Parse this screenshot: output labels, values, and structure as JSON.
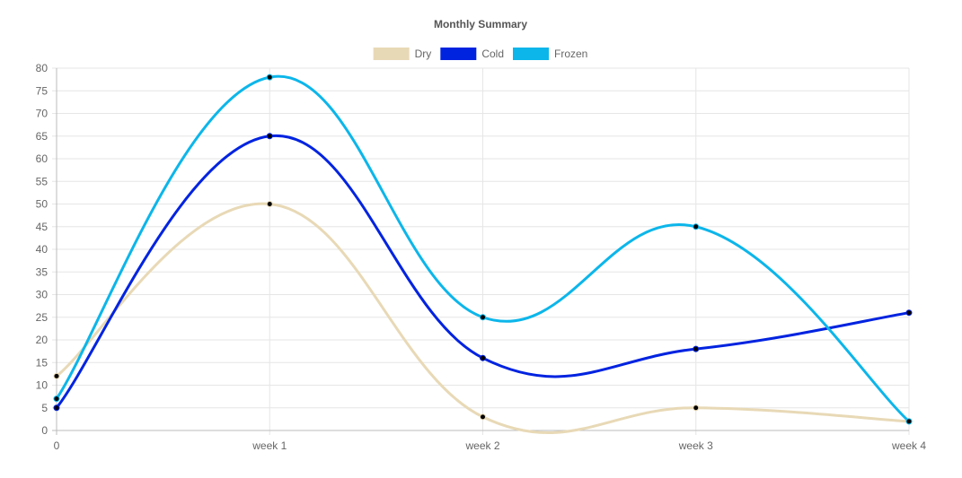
{
  "chart_data": {
    "type": "line",
    "title": "Monthly Summary",
    "categories": [
      "0",
      "week 1",
      "week 2",
      "week 3",
      "week 4"
    ],
    "series": [
      {
        "name": "Dry",
        "values": [
          12,
          50,
          3,
          5,
          2
        ],
        "color": "#e8d9b6"
      },
      {
        "name": "Cold",
        "values": [
          5,
          65,
          16,
          18,
          26
        ],
        "color": "#0023e0"
      },
      {
        "name": "Frozen",
        "values": [
          7,
          78,
          25,
          45,
          2
        ],
        "color": "#0cb6ea"
      }
    ],
    "ylim": [
      0,
      80
    ],
    "yticks": [
      0,
      5,
      10,
      15,
      20,
      25,
      30,
      35,
      40,
      45,
      50,
      55,
      60,
      65,
      70,
      75,
      80
    ],
    "xlabel": "",
    "ylabel": "",
    "grid": true,
    "legend_position": "top",
    "smooth": true,
    "point_color": "#000000"
  }
}
